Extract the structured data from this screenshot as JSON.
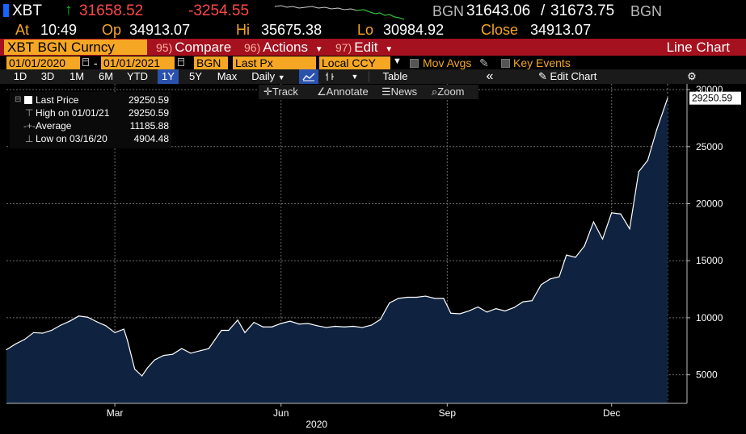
{
  "header": {
    "ticker": "XBT",
    "last_price": "31658.52",
    "net_change": "-3254.55",
    "source1": "BGN",
    "bid": "31643.06",
    "separator": "/",
    "ask": "31673.75",
    "source2": "BGN"
  },
  "ohlc": {
    "at_label": "At",
    "time": "10:49",
    "open_label": "Op",
    "open": "34913.07",
    "high_label": "Hi",
    "high": "35675.38",
    "low_label": "Lo",
    "low": "30984.92",
    "close_label": "Close",
    "close": "34913.07"
  },
  "menu": {
    "security": "XBT BGN Curncy",
    "compare_num": "95)",
    "compare": "Compare",
    "actions_num": "96)",
    "actions": "Actions",
    "edit_num": "97)",
    "edit": "Edit",
    "chart_type": "Line Chart"
  },
  "range": {
    "start_date": "01/01/2020",
    "dash": "-",
    "end_date": "01/01/2021",
    "source": "BGN",
    "field": "Last Px",
    "currency": "Local CCY",
    "mov_avgs": "Mov Avgs",
    "key_events": "Key Events"
  },
  "toolbar": {
    "periods": [
      "1D",
      "3D",
      "1M",
      "6M",
      "YTD",
      "1Y",
      "5Y",
      "Max"
    ],
    "active_period": "1Y",
    "frequency": "Daily",
    "table": "Table",
    "collapse": "«",
    "edit_chart": "Edit Chart"
  },
  "subtools": {
    "track": "Track",
    "annotate": "Annotate",
    "news": "News",
    "zoom": "Zoom"
  },
  "legend": {
    "last_price_label": "Last Price",
    "last_price_value": "29250.59",
    "high_label": "High on 01/01/21",
    "high_value": "29250.59",
    "average_label": "Average",
    "average_value": "11185.88",
    "low_label": "Low on 03/16/20",
    "low_value": "4904.48"
  },
  "colors": {
    "accent_orange": "#f5a623",
    "menu_red": "#a5111f",
    "price_up": "#1ec41e",
    "price_down": "#ff4848",
    "area_fill": "#0f2340",
    "line": "#ffffff"
  },
  "chart_data": {
    "type": "area",
    "series": [
      {
        "name": "Last Price",
        "x": [
          "2020-01-01",
          "2020-01-06",
          "2020-01-11",
          "2020-01-16",
          "2020-01-21",
          "2020-01-26",
          "2020-01-31",
          "2020-02-05",
          "2020-02-10",
          "2020-02-15",
          "2020-02-20",
          "2020-02-25",
          "2020-03-01",
          "2020-03-06",
          "2020-03-08",
          "2020-03-12",
          "2020-03-16",
          "2020-03-19",
          "2020-03-23",
          "2020-03-28",
          "2020-04-02",
          "2020-04-07",
          "2020-04-12",
          "2020-04-17",
          "2020-04-22",
          "2020-04-29",
          "2020-05-03",
          "2020-05-08",
          "2020-05-12",
          "2020-05-17",
          "2020-05-22",
          "2020-05-27",
          "2020-06-01",
          "2020-06-06",
          "2020-06-11",
          "2020-06-16",
          "2020-06-21",
          "2020-06-26",
          "2020-07-01",
          "2020-07-06",
          "2020-07-11",
          "2020-07-16",
          "2020-07-21",
          "2020-07-26",
          "2020-07-31",
          "2020-08-05",
          "2020-08-10",
          "2020-08-15",
          "2020-08-20",
          "2020-08-25",
          "2020-08-30",
          "2020-09-03",
          "2020-09-08",
          "2020-09-13",
          "2020-09-18",
          "2020-09-23",
          "2020-09-28",
          "2020-10-03",
          "2020-10-08",
          "2020-10-13",
          "2020-10-18",
          "2020-10-23",
          "2020-10-28",
          "2020-11-02",
          "2020-11-06",
          "2020-11-11",
          "2020-11-16",
          "2020-11-21",
          "2020-11-26",
          "2020-12-01",
          "2020-12-06",
          "2020-12-11",
          "2020-12-16",
          "2020-12-21",
          "2020-12-26",
          "2021-01-01"
        ],
        "y": [
          7200,
          7700,
          8100,
          8700,
          8650,
          8900,
          9350,
          9700,
          10150,
          10050,
          9650,
          9300,
          8700,
          9000,
          8000,
          5500,
          4904,
          5600,
          6300,
          6700,
          6800,
          7300,
          6900,
          7100,
          7300,
          8900,
          8900,
          9800,
          8700,
          9600,
          9200,
          9200,
          9500,
          9700,
          9450,
          9500,
          9300,
          9150,
          9250,
          9200,
          9250,
          9150,
          9350,
          9850,
          11300,
          11700,
          11800,
          11800,
          11900,
          11700,
          11700,
          10400,
          10350,
          10600,
          10950,
          10500,
          10800,
          10600,
          10900,
          11400,
          11500,
          12900,
          13400,
          13600,
          15500,
          15300,
          16300,
          18400,
          16900,
          19200,
          19100,
          17800,
          22800,
          23800,
          26500,
          29250.59
        ]
      }
    ],
    "xlabel": "2020",
    "x_ticks": [
      "Mar",
      "Jun",
      "Sep",
      "Dec"
    ],
    "x_tick_dates": [
      "2020-03-01",
      "2020-06-01",
      "2020-09-01",
      "2020-12-01"
    ],
    "yticks": [
      5000,
      10000,
      15000,
      20000,
      25000,
      30000
    ],
    "ylim": [
      2500,
      30500
    ],
    "xlim": [
      "2020-01-01",
      "2021-01-01"
    ],
    "y_axis_side": "right",
    "last_value_tag": "29250.59",
    "grid": true
  }
}
